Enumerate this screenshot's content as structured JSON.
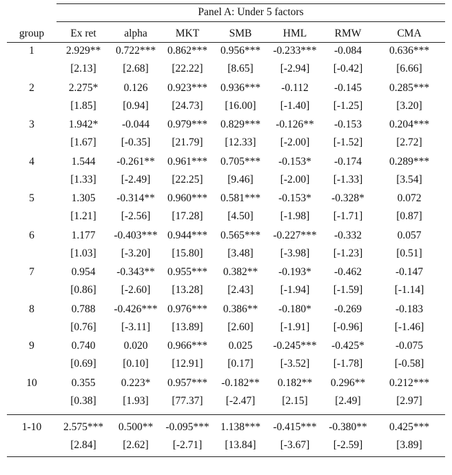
{
  "panel_title": "Panel A: Under 5 factors",
  "columns": [
    "group",
    "Ex ret",
    "alpha",
    "MKT",
    "SMB",
    "HML",
    "RMW",
    "CMA"
  ],
  "rows": [
    {
      "group": "1",
      "coef": [
        "2.929**",
        "0.722***",
        "0.862***",
        "0.956***",
        "-0.233***",
        "-0.084",
        "0.636***"
      ],
      "tstat": [
        "[2.13]",
        "[2.68]",
        "[22.22]",
        "[8.65]",
        "[-2.94]",
        "[-0.42]",
        "[6.66]"
      ]
    },
    {
      "group": "2",
      "coef": [
        "2.275*",
        "0.126",
        "0.923***",
        "0.936***",
        "-0.112",
        "-0.145",
        "0.285***"
      ],
      "tstat": [
        "[1.85]",
        "[0.94]",
        "[24.73]",
        "[16.00]",
        "[-1.40]",
        "[-1.25]",
        "[3.20]"
      ]
    },
    {
      "group": "3",
      "coef": [
        "1.942*",
        "-0.044",
        "0.979***",
        "0.829***",
        "-0.126**",
        "-0.153",
        "0.204***"
      ],
      "tstat": [
        "[1.67]",
        "[-0.35]",
        "[21.79]",
        "[12.33]",
        "[-2.00]",
        "[-1.52]",
        "[2.72]"
      ]
    },
    {
      "group": "4",
      "coef": [
        "1.544",
        "-0.261**",
        "0.961***",
        "0.705***",
        "-0.153*",
        "-0.174",
        "0.289***"
      ],
      "tstat": [
        "[1.33]",
        "[-2.49]",
        "[22.25]",
        "[9.46]",
        "[-2.00]",
        "[-1.33]",
        "[3.54]"
      ]
    },
    {
      "group": "5",
      "coef": [
        "1.305",
        "-0.314**",
        "0.960***",
        "0.581***",
        "-0.153*",
        "-0.328*",
        "0.072"
      ],
      "tstat": [
        "[1.21]",
        "[-2.56]",
        "[17.28]",
        "[4.50]",
        "[-1.98]",
        "[-1.71]",
        "[0.87]"
      ]
    },
    {
      "group": "6",
      "coef": [
        "1.177",
        "-0.403***",
        "0.944***",
        "0.565***",
        "-0.227***",
        "-0.332",
        "0.057"
      ],
      "tstat": [
        "[1.03]",
        "[-3.20]",
        "[15.80]",
        "[3.48]",
        "[-3.98]",
        "[-1.23]",
        "[0.51]"
      ]
    },
    {
      "group": "7",
      "coef": [
        "0.954",
        "-0.343**",
        "0.955***",
        "0.382**",
        "-0.193*",
        "-0.462",
        "-0.147"
      ],
      "tstat": [
        "[0.86]",
        "[-2.60]",
        "[13.28]",
        "[2.43]",
        "[-1.94]",
        "[-1.59]",
        "[-1.14]"
      ]
    },
    {
      "group": "8",
      "coef": [
        "0.788",
        "-0.426***",
        "0.976***",
        "0.386**",
        "-0.180*",
        "-0.269",
        "-0.183"
      ],
      "tstat": [
        "[0.76]",
        "[-3.11]",
        "[13.89]",
        "[2.60]",
        "[-1.91]",
        "[-0.96]",
        "[-1.46]"
      ]
    },
    {
      "group": "9",
      "coef": [
        "0.740",
        "0.020",
        "0.966***",
        "0.025",
        "-0.245***",
        "-0.425*",
        "-0.075"
      ],
      "tstat": [
        "[0.69]",
        "[0.10]",
        "[12.91]",
        "[0.17]",
        "[-3.52]",
        "[-1.78]",
        "[-0.58]"
      ]
    },
    {
      "group": "10",
      "coef": [
        "0.355",
        "0.223*",
        "0.957***",
        "-0.182**",
        "0.182**",
        "0.296**",
        "0.212***"
      ],
      "tstat": [
        "[0.38]",
        "[1.93]",
        "[77.37]",
        "[-2.47]",
        "[2.15]",
        "[2.49]",
        "[2.97]"
      ]
    },
    {
      "group": "1-10",
      "coef": [
        "2.575***",
        "0.500**",
        "-0.095***",
        "1.138***",
        "-0.415***",
        "-0.380**",
        "0.425***"
      ],
      "tstat": [
        "[2.84]",
        "[2.62]",
        "[-2.71]",
        "[13.84]",
        "[-3.67]",
        "[-2.59]",
        "[3.89]"
      ]
    }
  ]
}
